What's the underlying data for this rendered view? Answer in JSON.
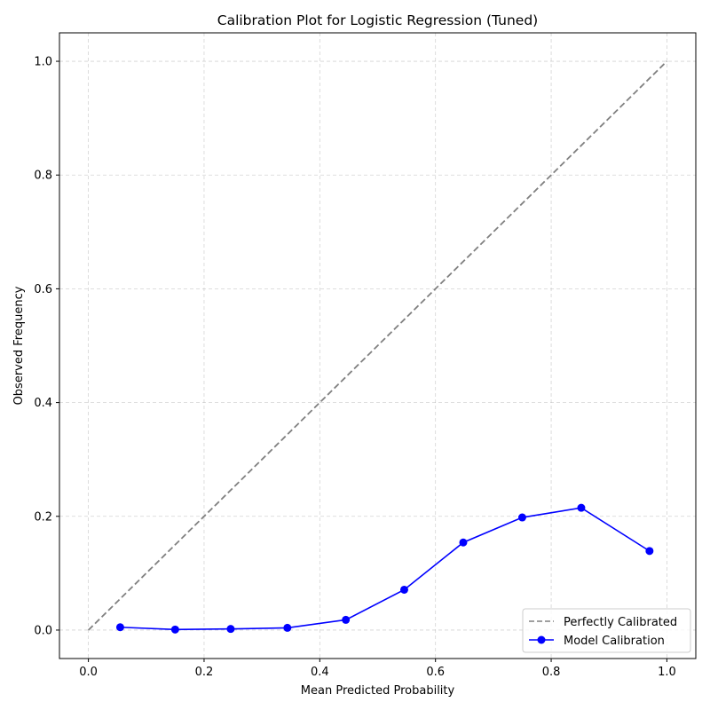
{
  "chart_data": {
    "type": "line",
    "title": "Calibration Plot for Logistic Regression (Tuned)",
    "xlabel": "Mean Predicted Probability",
    "ylabel": "Observed Frequency",
    "xlim": [
      -0.05,
      1.05
    ],
    "ylim": [
      -0.05,
      1.05
    ],
    "xticks": [
      0.0,
      0.2,
      0.4,
      0.6,
      0.8,
      1.0
    ],
    "yticks": [
      0.0,
      0.2,
      0.4,
      0.6,
      0.8,
      1.0
    ],
    "xtick_labels": [
      "0.0",
      "0.2",
      "0.4",
      "0.6",
      "0.8",
      "1.0"
    ],
    "ytick_labels": [
      "0.0",
      "0.2",
      "0.4",
      "0.6",
      "0.8",
      "1.0"
    ],
    "grid": true,
    "legend_position": "lower-right",
    "series": [
      {
        "name": "Perfectly Calibrated",
        "color": "#808080",
        "style": "dashed",
        "x": [
          0.0,
          1.0
        ],
        "y": [
          0.0,
          1.0
        ]
      },
      {
        "name": "Model Calibration",
        "color": "#0000ff",
        "style": "solid-with-markers",
        "x": [
          0.055,
          0.15,
          0.246,
          0.344,
          0.445,
          0.546,
          0.648,
          0.75,
          0.852,
          0.97
        ],
        "y": [
          0.005,
          0.001,
          0.002,
          0.004,
          0.018,
          0.071,
          0.154,
          0.198,
          0.215,
          0.139
        ]
      }
    ]
  }
}
